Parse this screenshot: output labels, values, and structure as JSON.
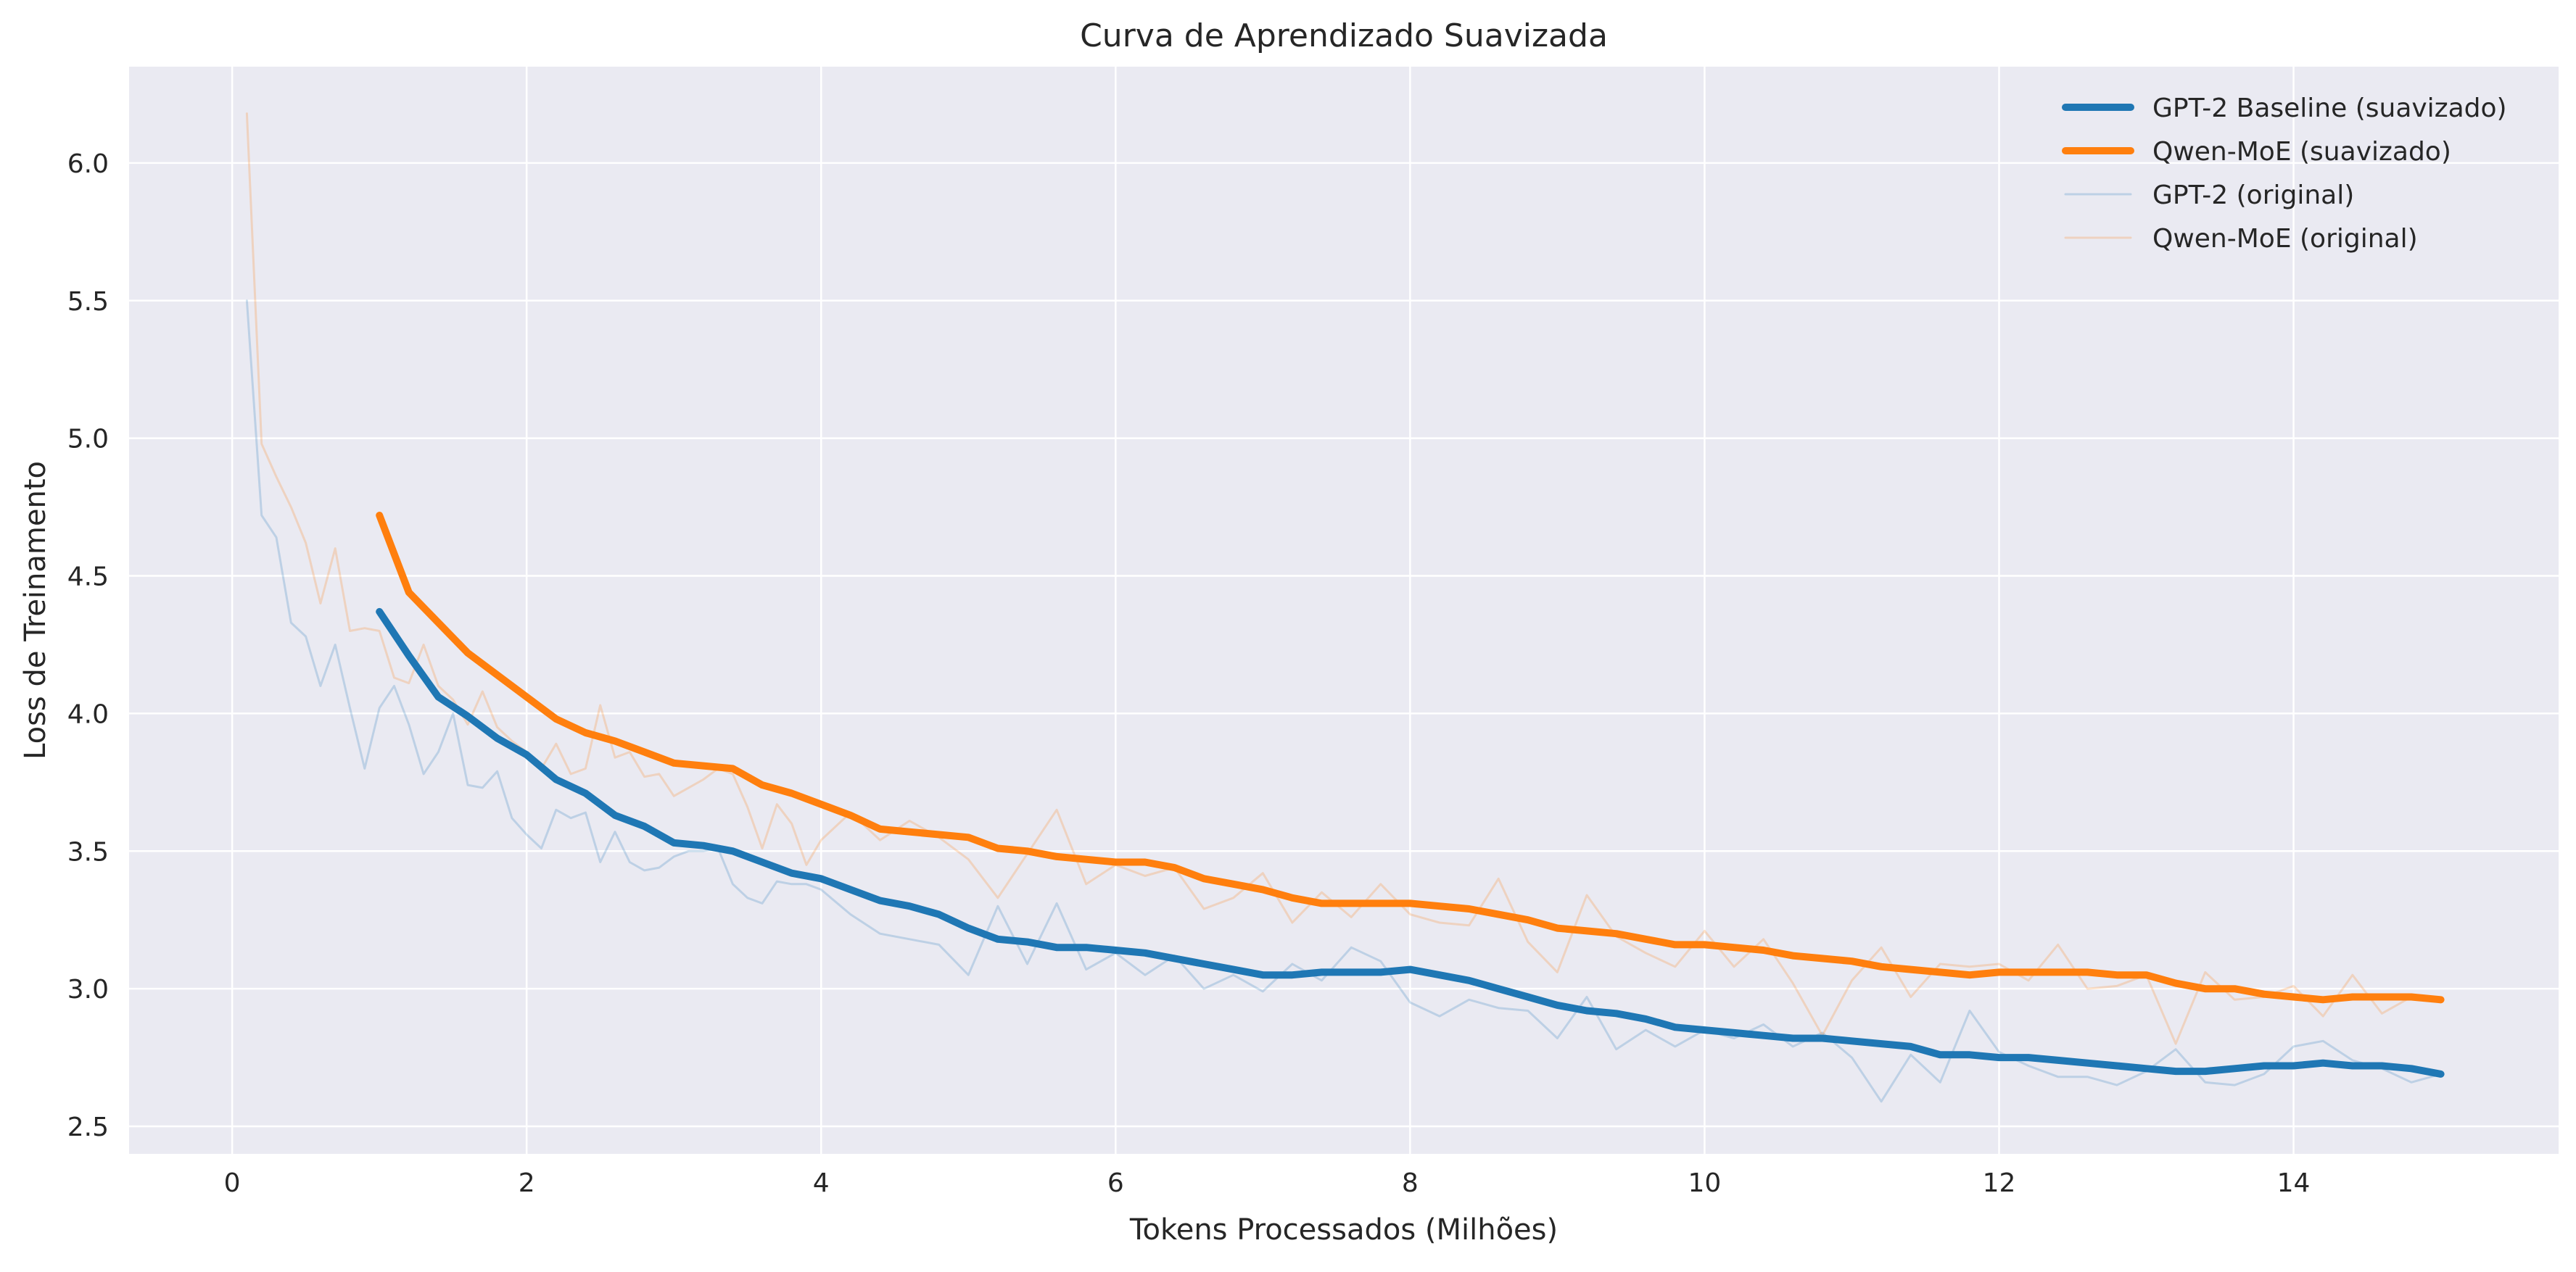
{
  "chart_data": {
    "type": "line",
    "title": "Curva de Aprendizado Suavizada",
    "xlabel": "Tokens Processados (Milhões)",
    "ylabel": "Loss de Treinamento",
    "xlim": [
      -0.7,
      15.8
    ],
    "ylim": [
      2.4,
      6.35
    ],
    "xticks": [
      0,
      2,
      4,
      6,
      8,
      10,
      12,
      14
    ],
    "xtick_labels": [
      "0",
      "2",
      "4",
      "6",
      "8",
      "10",
      "12",
      "14"
    ],
    "yticks": [
      2.5,
      3.0,
      3.5,
      4.0,
      4.5,
      5.0,
      5.5,
      6.0
    ],
    "ytick_labels": [
      "2.5",
      "3.0",
      "3.5",
      "4.0",
      "4.5",
      "5.0",
      "5.5",
      "6.0"
    ],
    "grid": true,
    "legend_position": "top-right",
    "background_color": "#eaeaf2",
    "series": [
      {
        "name": "GPT-2 Baseline (suavizado)",
        "color": "#1f77b4",
        "style": "thick",
        "x": [
          1.0,
          1.2,
          1.4,
          1.6,
          1.8,
          2.0,
          2.2,
          2.4,
          2.6,
          2.8,
          3.0,
          3.2,
          3.4,
          3.6,
          3.8,
          4.0,
          4.2,
          4.4,
          4.6,
          4.8,
          5.0,
          5.2,
          5.4,
          5.6,
          5.8,
          6.0,
          6.2,
          6.4,
          6.6,
          6.8,
          7.0,
          7.2,
          7.4,
          7.6,
          7.8,
          8.0,
          8.2,
          8.4,
          8.6,
          8.8,
          9.0,
          9.2,
          9.4,
          9.6,
          9.8,
          10.0,
          10.2,
          10.4,
          10.6,
          10.8,
          11.0,
          11.2,
          11.4,
          11.6,
          11.8,
          12.0,
          12.2,
          12.4,
          12.6,
          12.8,
          13.0,
          13.2,
          13.4,
          13.6,
          13.8,
          14.0,
          14.2,
          14.4,
          14.6,
          14.8,
          15.0
        ],
        "y": [
          4.37,
          4.21,
          4.06,
          3.99,
          3.91,
          3.85,
          3.76,
          3.71,
          3.63,
          3.59,
          3.53,
          3.52,
          3.5,
          3.46,
          3.42,
          3.4,
          3.36,
          3.32,
          3.3,
          3.27,
          3.22,
          3.18,
          3.17,
          3.15,
          3.15,
          3.14,
          3.13,
          3.11,
          3.09,
          3.07,
          3.05,
          3.05,
          3.06,
          3.06,
          3.06,
          3.07,
          3.05,
          3.03,
          3.0,
          2.97,
          2.94,
          2.92,
          2.91,
          2.89,
          2.86,
          2.85,
          2.84,
          2.83,
          2.82,
          2.82,
          2.81,
          2.8,
          2.79,
          2.76,
          2.76,
          2.75,
          2.75,
          2.74,
          2.73,
          2.72,
          2.71,
          2.7,
          2.7,
          2.71,
          2.72,
          2.72,
          2.73,
          2.72,
          2.72,
          2.71,
          2.69
        ]
      },
      {
        "name": "Qwen-MoE (suavizado)",
        "color": "#ff7f0e",
        "style": "thick",
        "x": [
          1.0,
          1.2,
          1.4,
          1.6,
          1.8,
          2.0,
          2.2,
          2.4,
          2.6,
          2.8,
          3.0,
          3.2,
          3.4,
          3.6,
          3.8,
          4.0,
          4.2,
          4.4,
          4.6,
          4.8,
          5.0,
          5.2,
          5.4,
          5.6,
          5.8,
          6.0,
          6.2,
          6.4,
          6.6,
          6.8,
          7.0,
          7.2,
          7.4,
          7.6,
          7.8,
          8.0,
          8.2,
          8.4,
          8.6,
          8.8,
          9.0,
          9.2,
          9.4,
          9.6,
          9.8,
          10.0,
          10.2,
          10.4,
          10.6,
          10.8,
          11.0,
          11.2,
          11.4,
          11.6,
          11.8,
          12.0,
          12.2,
          12.4,
          12.6,
          12.8,
          13.0,
          13.2,
          13.4,
          13.6,
          13.8,
          14.0,
          14.2,
          14.4,
          14.6,
          14.8,
          15.0
        ],
        "y": [
          4.72,
          4.44,
          4.33,
          4.22,
          4.14,
          4.06,
          3.98,
          3.93,
          3.9,
          3.86,
          3.82,
          3.81,
          3.8,
          3.74,
          3.71,
          3.67,
          3.63,
          3.58,
          3.57,
          3.56,
          3.55,
          3.51,
          3.5,
          3.48,
          3.47,
          3.46,
          3.46,
          3.44,
          3.4,
          3.38,
          3.36,
          3.33,
          3.31,
          3.31,
          3.31,
          3.31,
          3.3,
          3.29,
          3.27,
          3.25,
          3.22,
          3.21,
          3.2,
          3.18,
          3.16,
          3.16,
          3.15,
          3.14,
          3.12,
          3.11,
          3.1,
          3.08,
          3.07,
          3.06,
          3.05,
          3.06,
          3.06,
          3.06,
          3.06,
          3.05,
          3.05,
          3.02,
          3.0,
          3.0,
          2.98,
          2.97,
          2.96,
          2.97,
          2.97,
          2.97,
          2.96
        ]
      },
      {
        "name": "GPT-2 (original)",
        "color": "#1f77b4",
        "style": "thin",
        "x": [
          0.1,
          0.2,
          0.3,
          0.4,
          0.5,
          0.6,
          0.7,
          0.8,
          0.9,
          1.0,
          1.1,
          1.2,
          1.3,
          1.4,
          1.5,
          1.6,
          1.7,
          1.8,
          1.9,
          2.0,
          2.1,
          2.2,
          2.3,
          2.4,
          2.5,
          2.6,
          2.7,
          2.8,
          2.9,
          3.0,
          3.1,
          3.2,
          3.3,
          3.4,
          3.5,
          3.6,
          3.7,
          3.8,
          3.9,
          4.0,
          4.2,
          4.4,
          4.6,
          4.8,
          5.0,
          5.2,
          5.4,
          5.6,
          5.8,
          6.0,
          6.2,
          6.4,
          6.6,
          6.8,
          7.0,
          7.2,
          7.4,
          7.6,
          7.8,
          8.0,
          8.2,
          8.4,
          8.6,
          8.8,
          9.0,
          9.2,
          9.4,
          9.6,
          9.8,
          10.0,
          10.2,
          10.4,
          10.6,
          10.8,
          11.0,
          11.2,
          11.4,
          11.6,
          11.8,
          12.0,
          12.2,
          12.4,
          12.6,
          12.8,
          13.0,
          13.2,
          13.4,
          13.6,
          13.8,
          14.0,
          14.2,
          14.4,
          14.6,
          14.8,
          15.0
        ],
        "y": [
          5.5,
          4.72,
          4.64,
          4.33,
          4.28,
          4.1,
          4.25,
          4.02,
          3.8,
          4.02,
          4.1,
          3.96,
          3.78,
          3.86,
          4.0,
          3.74,
          3.73,
          3.79,
          3.62,
          3.56,
          3.51,
          3.65,
          3.62,
          3.64,
          3.46,
          3.57,
          3.46,
          3.43,
          3.44,
          3.48,
          3.5,
          3.5,
          3.51,
          3.38,
          3.33,
          3.31,
          3.39,
          3.38,
          3.38,
          3.36,
          3.27,
          3.2,
          3.18,
          3.16,
          3.05,
          3.3,
          3.09,
          3.31,
          3.07,
          3.13,
          3.05,
          3.12,
          3.0,
          3.05,
          2.99,
          3.09,
          3.03,
          3.15,
          3.1,
          2.95,
          2.9,
          2.96,
          2.93,
          2.92,
          2.82,
          2.97,
          2.78,
          2.85,
          2.79,
          2.85,
          2.82,
          2.87,
          2.79,
          2.84,
          2.75,
          2.59,
          2.76,
          2.66,
          2.92,
          2.77,
          2.72,
          2.68,
          2.68,
          2.65,
          2.7,
          2.78,
          2.66,
          2.65,
          2.69,
          2.79,
          2.81,
          2.74,
          2.71,
          2.66,
          2.69
        ]
      },
      {
        "name": "Qwen-MoE (original)",
        "color": "#ff7f0e",
        "style": "thin",
        "x": [
          0.1,
          0.2,
          0.3,
          0.4,
          0.5,
          0.6,
          0.7,
          0.8,
          0.9,
          1.0,
          1.1,
          1.2,
          1.3,
          1.4,
          1.5,
          1.6,
          1.7,
          1.8,
          1.9,
          2.0,
          2.1,
          2.2,
          2.3,
          2.4,
          2.5,
          2.6,
          2.7,
          2.8,
          2.9,
          3.0,
          3.1,
          3.2,
          3.3,
          3.4,
          3.5,
          3.6,
          3.7,
          3.8,
          3.9,
          4.0,
          4.2,
          4.4,
          4.6,
          4.8,
          5.0,
          5.2,
          5.4,
          5.6,
          5.8,
          6.0,
          6.2,
          6.4,
          6.6,
          6.8,
          7.0,
          7.2,
          7.4,
          7.6,
          7.8,
          8.0,
          8.2,
          8.4,
          8.6,
          8.8,
          9.0,
          9.2,
          9.4,
          9.6,
          9.8,
          10.0,
          10.2,
          10.4,
          10.6,
          10.8,
          11.0,
          11.2,
          11.4,
          11.6,
          11.8,
          12.0,
          12.2,
          12.4,
          12.6,
          12.8,
          13.0,
          13.2,
          13.4,
          13.6,
          13.8,
          14.0,
          14.2,
          14.4,
          14.6,
          14.8,
          15.0
        ],
        "y": [
          6.18,
          4.98,
          4.86,
          4.75,
          4.62,
          4.4,
          4.6,
          4.3,
          4.31,
          4.3,
          4.13,
          4.11,
          4.25,
          4.1,
          4.05,
          3.96,
          4.08,
          3.95,
          3.9,
          3.86,
          3.8,
          3.89,
          3.78,
          3.8,
          4.03,
          3.84,
          3.86,
          3.77,
          3.78,
          3.7,
          3.73,
          3.76,
          3.8,
          3.78,
          3.66,
          3.51,
          3.67,
          3.6,
          3.45,
          3.54,
          3.64,
          3.54,
          3.61,
          3.55,
          3.47,
          3.33,
          3.49,
          3.65,
          3.38,
          3.45,
          3.41,
          3.44,
          3.29,
          3.33,
          3.42,
          3.24,
          3.35,
          3.26,
          3.38,
          3.27,
          3.24,
          3.23,
          3.4,
          3.17,
          3.06,
          3.34,
          3.19,
          3.13,
          3.08,
          3.21,
          3.08,
          3.18,
          3.02,
          2.83,
          3.03,
          3.15,
          2.97,
          3.09,
          3.08,
          3.09,
          3.03,
          3.16,
          3.0,
          3.01,
          3.05,
          2.8,
          3.06,
          2.96,
          2.97,
          3.01,
          2.9,
          3.05,
          2.91,
          2.97,
          2.95
        ]
      }
    ]
  }
}
